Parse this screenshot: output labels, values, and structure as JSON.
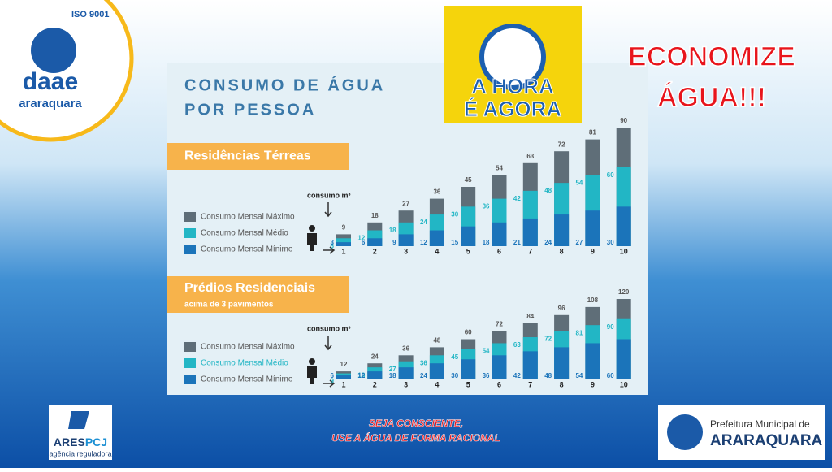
{
  "logo": {
    "iso": "ISO 9001",
    "name": "daae",
    "city": "araraquara"
  },
  "heading": [
    "CONSUMO DE ÁGUA",
    "POR PESSOA"
  ],
  "badge": [
    "A HORA",
    "É AGORA"
  ],
  "slogan": [
    "ECONOMIZE",
    "ÁGUA!!!"
  ],
  "footer": [
    "SEJA CONSCIENTE,",
    "USE A ÁGUA DE FORMA RACIONAL"
  ],
  "ares": {
    "name": [
      "ARES",
      "PCJ"
    ],
    "sub": "agência reguladora"
  },
  "prefeitura": {
    "line1": "Prefeitura Municipal de",
    "line2": "ARARAQUARA"
  },
  "chart_data": [
    {
      "type": "bar",
      "title": "Residências Térreas",
      "y_label": "consumo m³",
      "categories": [
        "1",
        "2",
        "3",
        "4",
        "5",
        "6",
        "7",
        "8",
        "9",
        "10"
      ],
      "ylim": [
        0,
        90
      ],
      "series": [
        {
          "name": "Consumo Mensal Máximo",
          "color": "#5f6e78",
          "values": [
            9,
            18,
            27,
            36,
            45,
            54,
            63,
            72,
            81,
            90
          ]
        },
        {
          "name": "Consumo Mensal Médio",
          "color": "#22b6c5",
          "values": [
            6,
            12,
            18,
            24,
            30,
            36,
            42,
            48,
            54,
            60
          ]
        },
        {
          "name": "Consumo Mensal Mínimo",
          "color": "#1b74ba",
          "values": [
            3,
            6,
            9,
            12,
            15,
            18,
            21,
            24,
            27,
            30
          ]
        }
      ]
    },
    {
      "type": "bar",
      "title": "Prédios Residenciais",
      "subtitle": "acima de 3 pavimentos",
      "y_label": "consumo m³",
      "categories": [
        "1",
        "2",
        "3",
        "4",
        "5",
        "6",
        "7",
        "8",
        "9",
        "10"
      ],
      "ylim": [
        0,
        120
      ],
      "series": [
        {
          "name": "Consumo Mensal Máximo",
          "color": "#5f6e78",
          "values": [
            12,
            24,
            36,
            48,
            60,
            72,
            84,
            96,
            108,
            120
          ]
        },
        {
          "name": "Consumo Mensal Médio",
          "color": "#22b6c5",
          "values": [
            9,
            18,
            27,
            36,
            45,
            54,
            63,
            72,
            81,
            90
          ]
        },
        {
          "name": "Consumo Mensal Mínimo",
          "color": "#1b74ba",
          "values": [
            6,
            12,
            18,
            24,
            30,
            36,
            42,
            48,
            54,
            60
          ]
        }
      ]
    }
  ]
}
